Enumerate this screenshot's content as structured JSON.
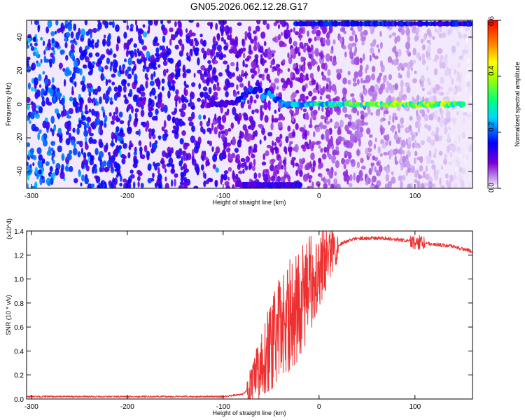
{
  "page": {
    "title": "GN05.2026.062.12.28.G17"
  },
  "chart_data": [
    {
      "type": "heatmap",
      "xlabel": "Height of straight line (km)",
      "ylabel": "Frequency (Hz)",
      "xlim": [
        -305,
        160
      ],
      "ylim": [
        -50,
        50
      ],
      "x_ticks": [
        -300,
        -200,
        -100,
        0,
        100
      ],
      "y_ticks": [
        -40,
        -20,
        0,
        20,
        40
      ],
      "colorbar": {
        "label": "Normalized spectral amplitude",
        "range": [
          0.0,
          0.6
        ],
        "ticks": [
          "0.0",
          "0.2",
          "0.4",
          "0.6"
        ],
        "colormap": [
          "#ffffff",
          "#7b00d4",
          "#0000ff",
          "#00d7ff",
          "#00ff80",
          "#a0ff00",
          "#ffff00",
          "#ff8c00",
          "#ff0000"
        ]
      },
      "features": [
        {
          "name": "carrier line near 0 Hz",
          "x_range": [
            -120,
            150
          ],
          "freq_hz": 0,
          "peak_amplitude": 0.45
        },
        {
          "name": "upper band near 48 Hz",
          "x_range": [
            -25,
            160
          ],
          "freq_hz": 48,
          "peak_amplitude": 0.25
        },
        {
          "name": "lower band near -48 Hz",
          "x_range": [
            -80,
            -20
          ],
          "freq_hz": -48,
          "peak_amplitude": 0.2
        }
      ]
    },
    {
      "type": "line",
      "xlabel": "Height of straight line (km)",
      "ylabel": "SNR (10 * v/v)",
      "y_multiplier": "(x10^4)",
      "xlim": [
        -305,
        160
      ],
      "ylim": [
        0.0,
        1.4
      ],
      "x_ticks": [
        -300,
        -200,
        -100,
        0,
        100
      ],
      "y_ticks": [
        "0.0",
        "0.2",
        "0.4",
        "0.6",
        "0.8",
        "1.0",
        "1.2",
        "1.4"
      ],
      "line_color": "#ee3030",
      "series": [
        {
          "x": [
            -305,
            -250,
            -200,
            -150,
            -100,
            -80,
            -70,
            -60,
            -50,
            -40,
            -30,
            -20,
            -10,
            0,
            10,
            20,
            30,
            40,
            50,
            60,
            70,
            80,
            90,
            100,
            110,
            120,
            130,
            140,
            150,
            160
          ],
          "values": [
            0.02,
            0.02,
            0.02,
            0.02,
            0.02,
            0.04,
            0.1,
            0.3,
            0.45,
            0.6,
            0.7,
            0.8,
            0.95,
            1.1,
            1.2,
            1.28,
            1.32,
            1.34,
            1.34,
            1.34,
            1.34,
            1.33,
            1.32,
            1.31,
            1.3,
            1.29,
            1.28,
            1.27,
            1.25,
            1.23
          ]
        }
      ]
    }
  ]
}
